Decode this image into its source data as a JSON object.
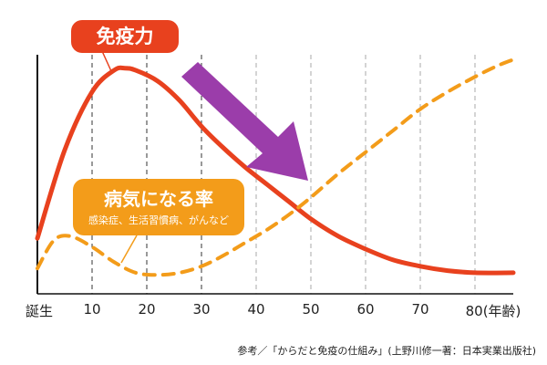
{
  "chart_data": {
    "type": "line",
    "x_tick_labels": [
      "誕生",
      "10",
      "20",
      "30",
      "40",
      "50",
      "60",
      "70",
      "80(年齢)"
    ],
    "x_ticks": [
      0,
      10,
      20,
      30,
      40,
      50,
      60,
      70,
      80
    ],
    "xlim": [
      0,
      87
    ],
    "y_scale": "relative (unlabeled)",
    "ylim": [
      0,
      100
    ],
    "grid": "vertical dashed lines at each age tick",
    "series": [
      {
        "name": "免疫力",
        "color": "#e8411e",
        "style": "solid",
        "x": [
          0,
          5,
          10,
          14,
          16,
          18,
          22,
          26,
          30,
          34,
          38,
          42,
          46,
          50,
          55,
          60,
          65,
          70,
          75,
          80,
          87
        ],
        "y": [
          19,
          60,
          87,
          97,
          98,
          97,
          92,
          83,
          71,
          61,
          52,
          44,
          36,
          28,
          20,
          14,
          9,
          6,
          4,
          3,
          3
        ]
      },
      {
        "name": "病気になる率",
        "color": "#f39c1a",
        "style": "dashed",
        "x": [
          0,
          3,
          6,
          10,
          14,
          18,
          22,
          26,
          30,
          34,
          38,
          42,
          46,
          50,
          55,
          60,
          65,
          70,
          75,
          80,
          84,
          87
        ],
        "y": [
          5,
          18,
          20,
          15,
          8,
          3,
          2,
          3,
          6,
          11,
          17,
          23,
          30,
          38,
          49,
          59,
          69,
          79,
          87,
          94,
          99,
          102
        ]
      }
    ],
    "annotations": {
      "immunity_label": "免疫力",
      "disease_label": "病気になる率",
      "disease_note": "感染症、生活習慣病、がんなど"
    },
    "source": "参考／「からだと免疫の仕組み」(上野川修一著：日本実業出版社)"
  }
}
